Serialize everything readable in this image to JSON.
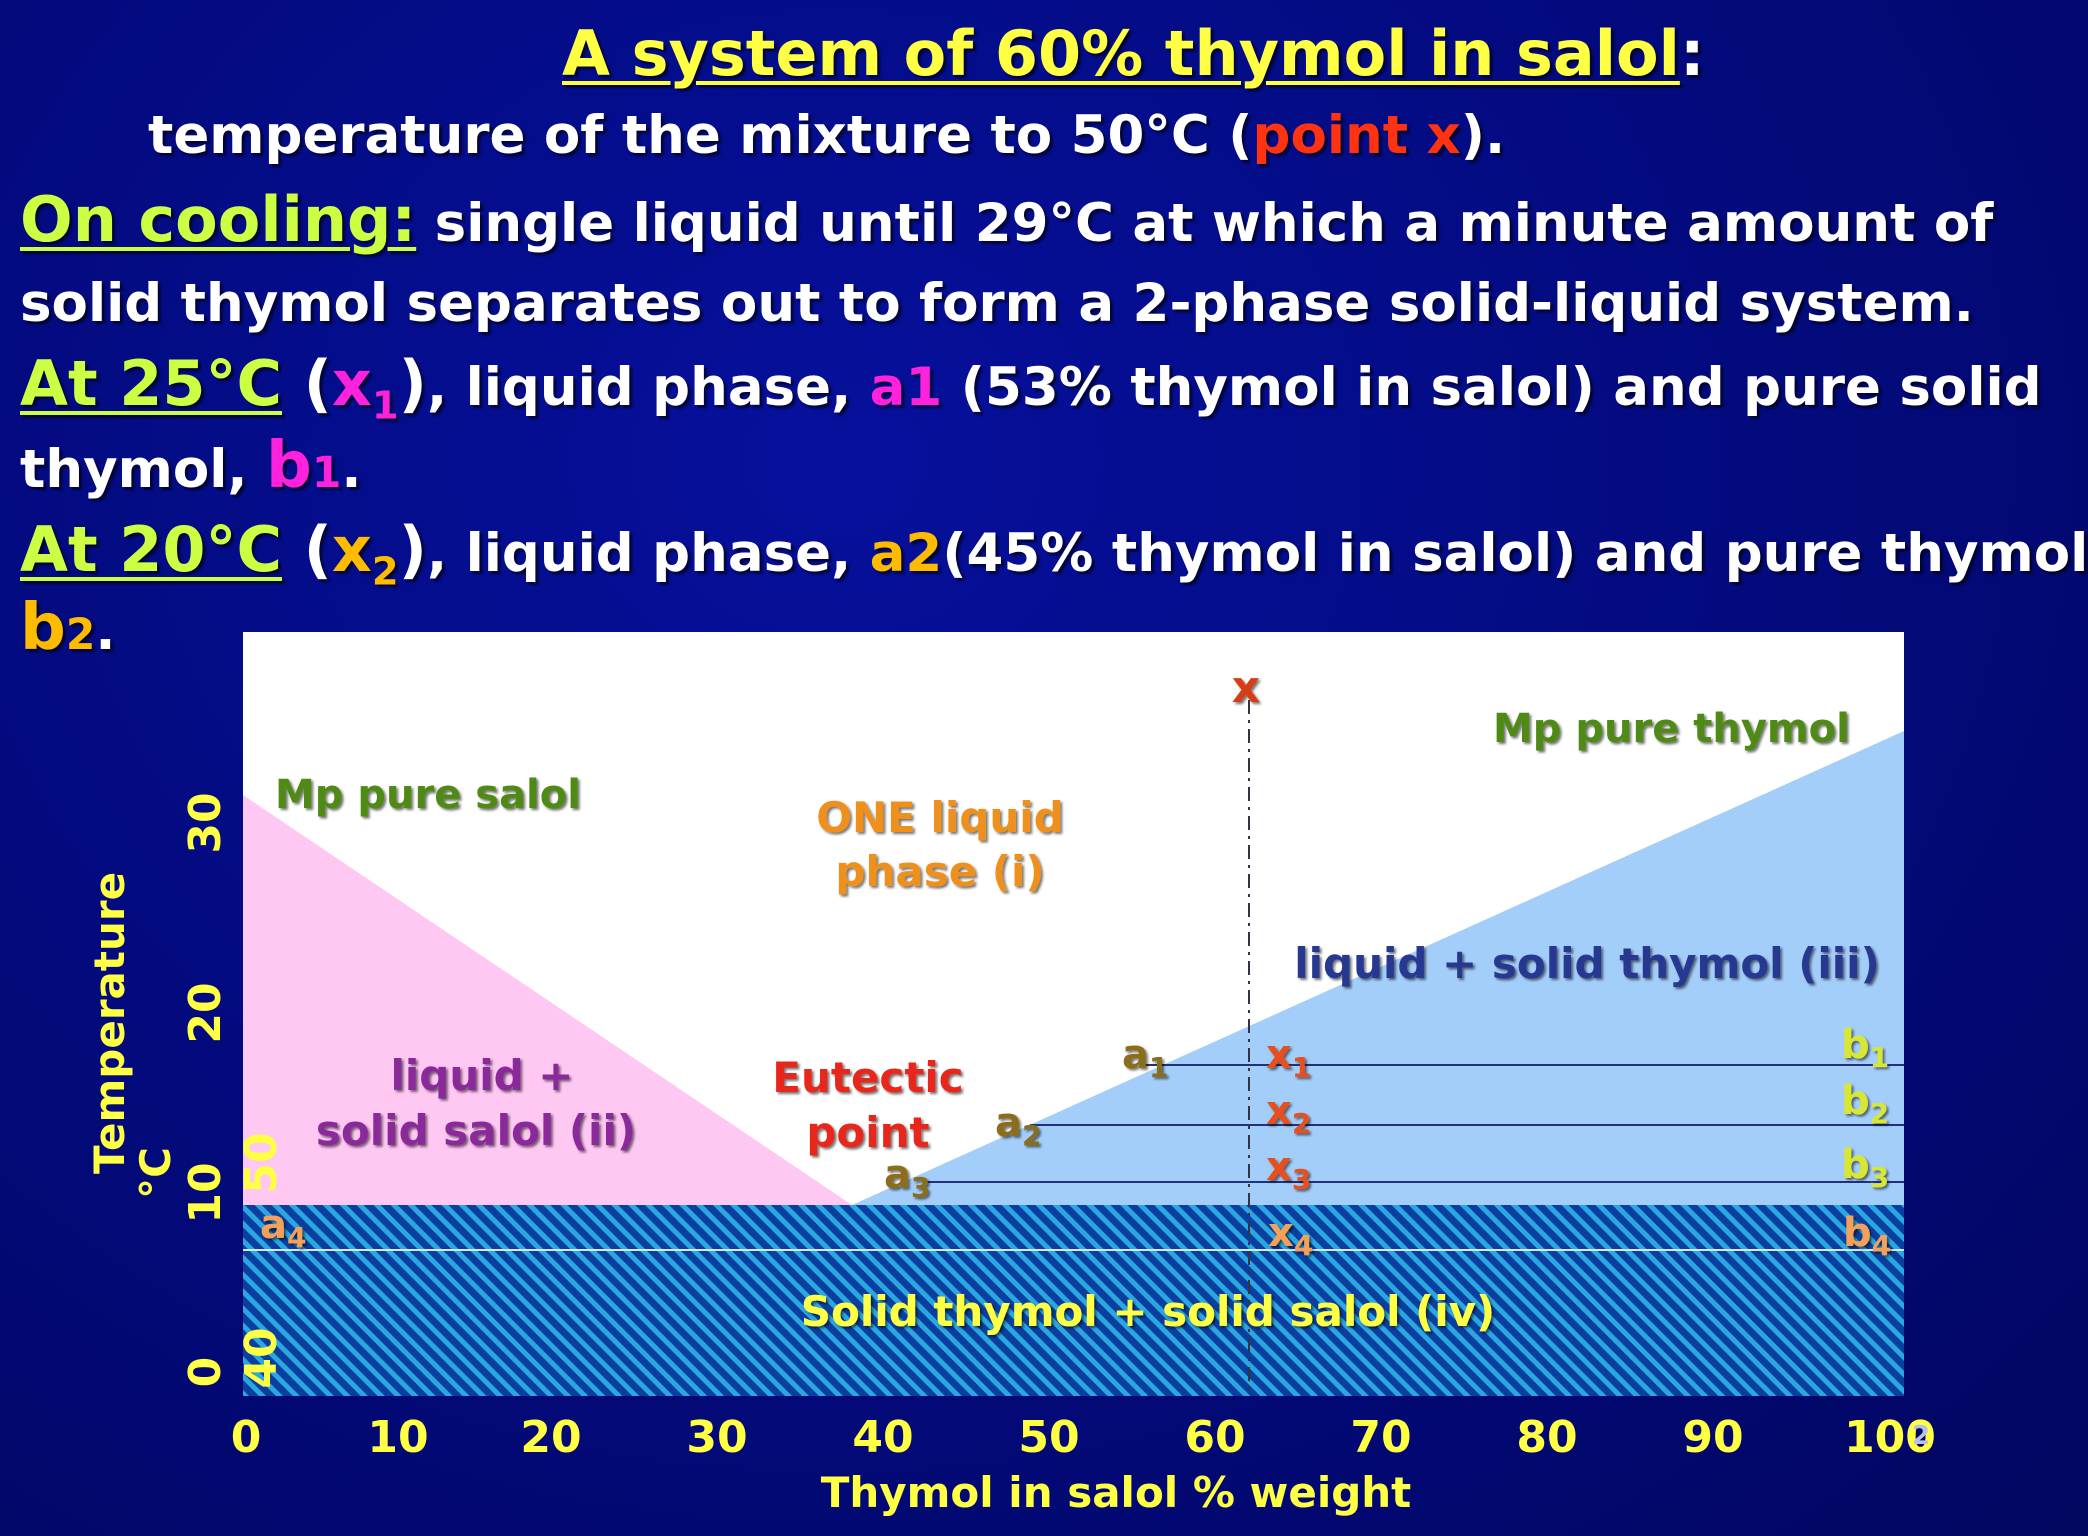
{
  "header": {
    "title": "A system of 60% thymol in salol",
    "title_colon": ":",
    "line1": {
      "pre": "temperature of the mixture to 50°C (",
      "highlight": "point x",
      "post": ")."
    },
    "line2": {
      "label": "On cooling:",
      "text": " single liquid until 29°C at which a minute amount of"
    },
    "line3": "solid thymol separates out to form a 2-phase solid-liquid system.",
    "line4": {
      "label": "At 25°C",
      "open": " (",
      "point": "x",
      "point_sub": "1",
      "close": ")",
      "text1": ", liquid phase, ",
      "phase": "a1",
      "text2": " (53% thymol in salol) and pure solid"
    },
    "line5": {
      "pre": "thymol, ",
      "solid": "b",
      "solid_sub": "1",
      "post": "."
    },
    "line6": {
      "label": "At 20°C",
      "open": " (",
      "point": "x",
      "point_sub": "2",
      "close": ")",
      "text1": ", liquid phase, ",
      "phase": "a2",
      "text2": "(45% thymol in salol) and pure thymol"
    },
    "line7": {
      "solid": "b",
      "solid_sub": "2",
      "post": "."
    }
  },
  "diagram": {
    "x_axis_title": "Thymol in salol % weight",
    "y_axis_title_1": "Temperature",
    "y_axis_title_2": "°C",
    "x_ticks": [
      "0",
      "10",
      "20",
      "30",
      "40",
      "50",
      "60",
      "70",
      "80",
      "90",
      "100"
    ],
    "y_ticks": [
      "0",
      "10",
      "20",
      "30"
    ],
    "y_ticks_alt": [
      "40",
      "50"
    ],
    "page_number": "2",
    "labels": {
      "mp_salol": "Mp pure salol",
      "mp_thymol": "Mp pure thymol",
      "one_liquid_1": "ONE  liquid",
      "one_liquid_2": "phase (i)",
      "liquid_salol_1": "liquid +",
      "liquid_salol_2": "solid salol (ii)",
      "liquid_thymol": "liquid + solid thymol (iii)",
      "eutectic_1": "Eutectic",
      "eutectic_2": "point",
      "solid_solid": "Solid thymol + solid salol (iv)",
      "point_x": "x"
    },
    "tie_lines": [
      {
        "a": "a",
        "a_sub": "1",
        "x": "x",
        "x_sub": "1",
        "b": "b",
        "b_sub": "1"
      },
      {
        "a": "a",
        "a_sub": "2",
        "x": "x",
        "x_sub": "2",
        "b": "b",
        "b_sub": "2"
      },
      {
        "a": "a",
        "a_sub": "3",
        "x": "x",
        "x_sub": "3",
        "b": "b",
        "b_sub": "3"
      },
      {
        "a": "a",
        "a_sub": "4",
        "x": "x",
        "x_sub": "4",
        "b": "b",
        "b_sub": "4"
      }
    ],
    "colors": {
      "plot_background": "#ffffff",
      "salol_region": "#ffc8f2",
      "thymol_region": "#a4cefa",
      "solid_region": "#0a3fa0",
      "hatch": "#2aa7e0",
      "axis_text": "#ffff44"
    }
  }
}
